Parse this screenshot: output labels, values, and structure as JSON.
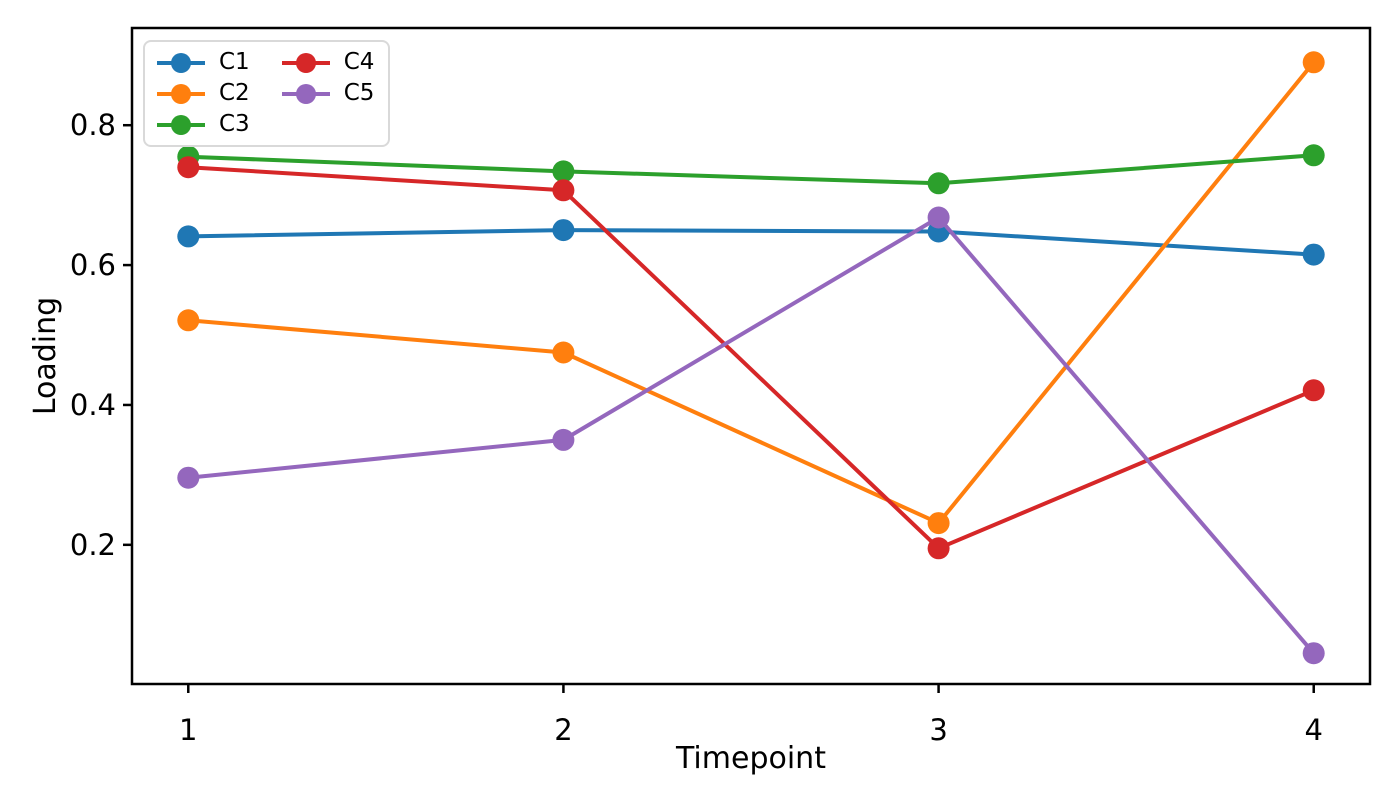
{
  "chart_data": {
    "type": "line",
    "title": "",
    "xlabel": "Timepoint",
    "ylabel": "Loading",
    "x": [
      1,
      2,
      3,
      4
    ],
    "series": [
      {
        "name": "C1",
        "color": "#1f77b4",
        "values": [
          0.641,
          0.65,
          0.648,
          0.615
        ]
      },
      {
        "name": "C2",
        "color": "#ff7f0e",
        "values": [
          0.521,
          0.475,
          0.231,
          0.89
        ]
      },
      {
        "name": "C3",
        "color": "#2ca02c",
        "values": [
          0.755,
          0.734,
          0.717,
          0.757
        ]
      },
      {
        "name": "C4",
        "color": "#d62728",
        "values": [
          0.74,
          0.707,
          0.195,
          0.421
        ]
      },
      {
        "name": "C5",
        "color": "#9467bd",
        "values": [
          0.296,
          0.35,
          0.668,
          0.045
        ]
      }
    ],
    "xticks": [
      1,
      2,
      3,
      4
    ],
    "xtick_labels": [
      "1",
      "2",
      "3",
      "4"
    ],
    "yticks": [
      0.2,
      0.4,
      0.6,
      0.8
    ],
    "ytick_labels": [
      "0.2",
      "0.4",
      "0.6",
      "0.8"
    ],
    "xlim": [
      0.85,
      4.15
    ],
    "ylim": [
      0.001,
      0.939
    ],
    "grid": false,
    "legend": {
      "position": "upper-left",
      "columns": 2
    },
    "colors": {
      "spine": "#000000",
      "background": "#ffffff",
      "legend_border": "#d9d9d9"
    }
  }
}
